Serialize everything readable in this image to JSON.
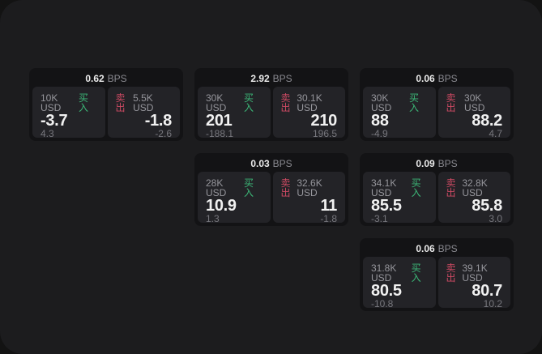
{
  "page": {
    "background_outer": "#131313",
    "background_window": "#1c1c1e"
  },
  "colors": {
    "card_bg": "#131315",
    "panel_bg": "#232327",
    "buy_green": "#3cb878",
    "sell_red": "#cd4a63",
    "value_white": "#f1f1f1",
    "label_gray": "#96969c",
    "sub_gray": "#77777d"
  },
  "labels": {
    "bps_suffix": "BPS",
    "buy": "买入",
    "sell": "卖出"
  },
  "cards": [
    {
      "bps": "0.62",
      "buy": {
        "amount": "10K USD",
        "value": "-3.7",
        "sub": "4.3"
      },
      "sell": {
        "amount": "5.5K USD",
        "value": "-1.8",
        "sub": "-2.6"
      }
    },
    {
      "bps": "2.92",
      "buy": {
        "amount": "30K USD",
        "value": "201",
        "sub": "-188.1"
      },
      "sell": {
        "amount": "30.1K USD",
        "value": "210",
        "sub": "196.5"
      }
    },
    {
      "bps": "0.06",
      "buy": {
        "amount": "30K USD",
        "value": "88",
        "sub": "-4.9"
      },
      "sell": {
        "amount": "30K USD",
        "value": "88.2",
        "sub": "4.7"
      }
    },
    {
      "bps": "0.03",
      "buy": {
        "amount": "28K USD",
        "value": "10.9",
        "sub": "1.3"
      },
      "sell": {
        "amount": "32.6K USD",
        "value": "11",
        "sub": "-1.8"
      }
    },
    {
      "bps": "0.09",
      "buy": {
        "amount": "34.1K USD",
        "value": "85.5",
        "sub": "-3.1"
      },
      "sell": {
        "amount": "32.8K USD",
        "value": "85.8",
        "sub": "3.0"
      }
    },
    {
      "bps": "0.06",
      "buy": {
        "amount": "31.8K USD",
        "value": "80.5",
        "sub": "-10.8"
      },
      "sell": {
        "amount": "39.1K USD",
        "value": "80.7",
        "sub": "10.2"
      }
    }
  ]
}
